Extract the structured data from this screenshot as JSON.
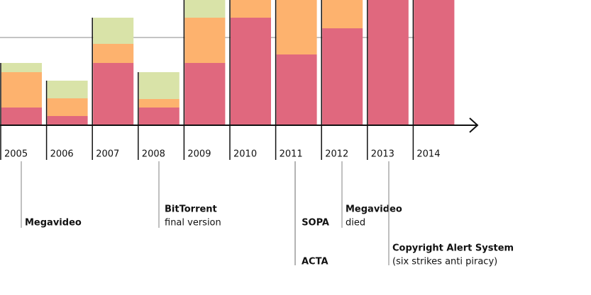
{
  "chart_data": {
    "type": "bar",
    "categories": [
      "2005",
      "2006",
      "2007",
      "2008",
      "2009",
      "2010",
      "2011",
      "2012",
      "2013",
      "2014"
    ],
    "series": [
      {
        "color": "#e0687e",
        "values": [
          25,
          13,
          88,
          25,
          88,
          152,
          100,
          137,
          177,
          177
        ]
      },
      {
        "color": "#fdb26e",
        "values": [
          50,
          25,
          27,
          12,
          64,
          25,
          77,
          40,
          0,
          0
        ]
      },
      {
        "color": "#d9e3a8",
        "values": [
          13,
          25,
          37,
          38,
          25,
          0,
          0,
          0,
          0,
          0
        ]
      }
    ],
    "ylim": [
      0,
      177
    ],
    "annotations": [
      {
        "year": 0,
        "lines": [
          "Megavideo"
        ]
      },
      {
        "year": 3,
        "lines": [
          "BitTorrent",
          "final version"
        ]
      },
      {
        "year": 6,
        "lines": [
          "SOPA"
        ]
      },
      {
        "year": 6,
        "lines": [
          "ACTA"
        ]
      },
      {
        "year": 7,
        "lines": [
          "Megavideo",
          "died"
        ]
      },
      {
        "year": 8,
        "lines": [
          "Copyright Alert System",
          "(six strikes anti piracy)"
        ]
      }
    ]
  }
}
